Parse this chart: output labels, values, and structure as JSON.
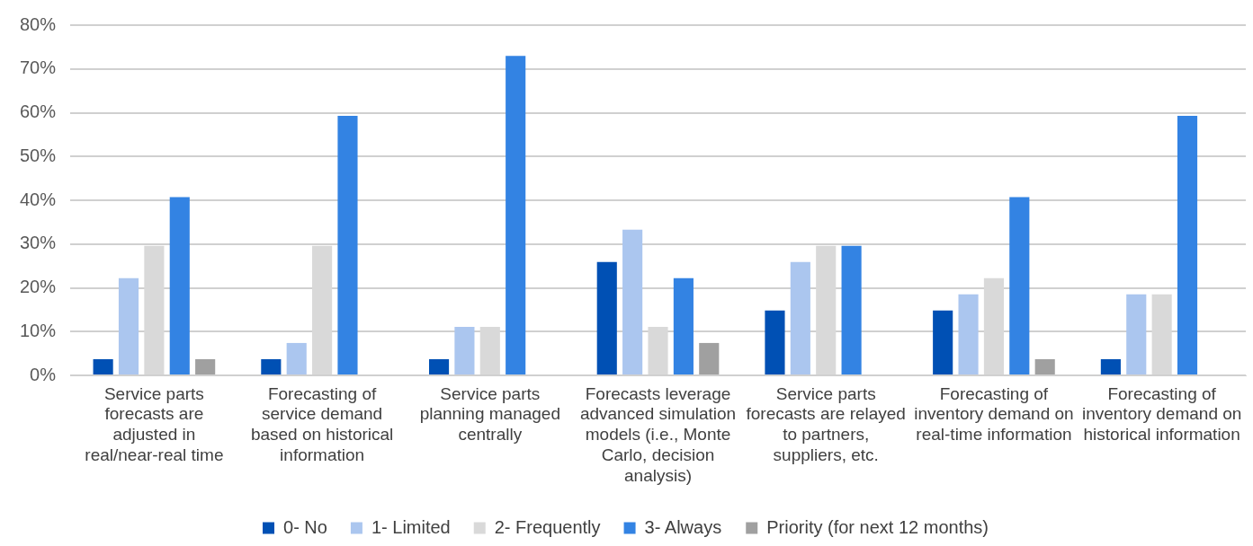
{
  "chart_data": {
    "type": "bar",
    "categories": [
      "Service parts forecasts are adjusted in real/near-real time",
      "Forecasting of service demand based on historical information",
      "Service parts planning managed centrally",
      "Forecasts leverage advanced simulation models (i.e., Monte Carlo, decision analysis)",
      "Service parts forecasts are relayed to partners, suppliers, etc.",
      "Forecasting of inventory demand on real-time information",
      "Forecasting of inventory demand on historical information"
    ],
    "series": [
      {
        "name": "0- No",
        "color": "#0050b4",
        "values": [
          3.7,
          3.7,
          3.7,
          25.9,
          14.8,
          14.8,
          3.7
        ]
      },
      {
        "name": "1- Limited",
        "color": "#abc6ef",
        "values": [
          22.2,
          7.4,
          11.1,
          33.3,
          25.9,
          18.5,
          18.5
        ]
      },
      {
        "name": "2- Frequently",
        "color": "#d9d9d9",
        "values": [
          29.6,
          29.6,
          11.1,
          11.1,
          29.6,
          22.2,
          18.5
        ]
      },
      {
        "name": "3- Always",
        "color": "#3383e3",
        "values": [
          40.7,
          59.3,
          73,
          22.2,
          29.6,
          40.7,
          59.3
        ]
      },
      {
        "name": "Priority (for next 12 months)",
        "color": "#a0a0a0",
        "values": [
          3.7,
          null,
          null,
          7.4,
          null,
          3.7,
          null
        ]
      }
    ],
    "ylim": [
      0,
      80
    ],
    "yticks": [
      {
        "value": 0,
        "label": "0%"
      },
      {
        "value": 10,
        "label": "10%"
      },
      {
        "value": 20,
        "label": "20%"
      },
      {
        "value": 30,
        "label": "30%"
      },
      {
        "value": 40,
        "label": "40%"
      },
      {
        "value": 50,
        "label": "50%"
      },
      {
        "value": 60,
        "label": "60%"
      },
      {
        "value": 70,
        "label": "70%"
      },
      {
        "value": 80,
        "label": "80%"
      }
    ],
    "grid": "y",
    "legend": "bottom"
  }
}
